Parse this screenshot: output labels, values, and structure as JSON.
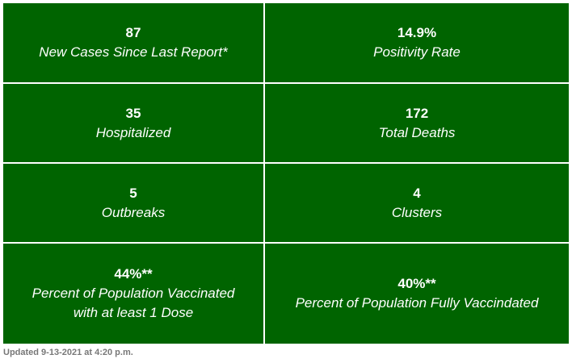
{
  "colors": {
    "cell_background": "#006400",
    "cell_text": "#ffffff",
    "grid_lines": "#ffffff",
    "footer_text": "#777777"
  },
  "stats": {
    "new_cases": {
      "value": "87",
      "label": "New Cases Since Last Report*"
    },
    "positivity_rate": {
      "value": "14.9%",
      "label": "Positivity Rate"
    },
    "hospitalized": {
      "value": "35",
      "label": "Hospitalized"
    },
    "total_deaths": {
      "value": "172",
      "label": "Total Deaths"
    },
    "outbreaks": {
      "value": "5",
      "label": "Outbreaks"
    },
    "clusters": {
      "value": "4",
      "label": "Clusters"
    },
    "vaccinated_one_dose": {
      "value": "44%**",
      "label_line1": "Percent of Population Vaccinated",
      "label_line2": "with at least 1 Dose"
    },
    "fully_vaccinated": {
      "value": "40%**",
      "label": "Percent of Population Fully Vaccindated"
    }
  },
  "footer": {
    "updated": "Updated 9-13-2021 at 4:20 p.m."
  }
}
